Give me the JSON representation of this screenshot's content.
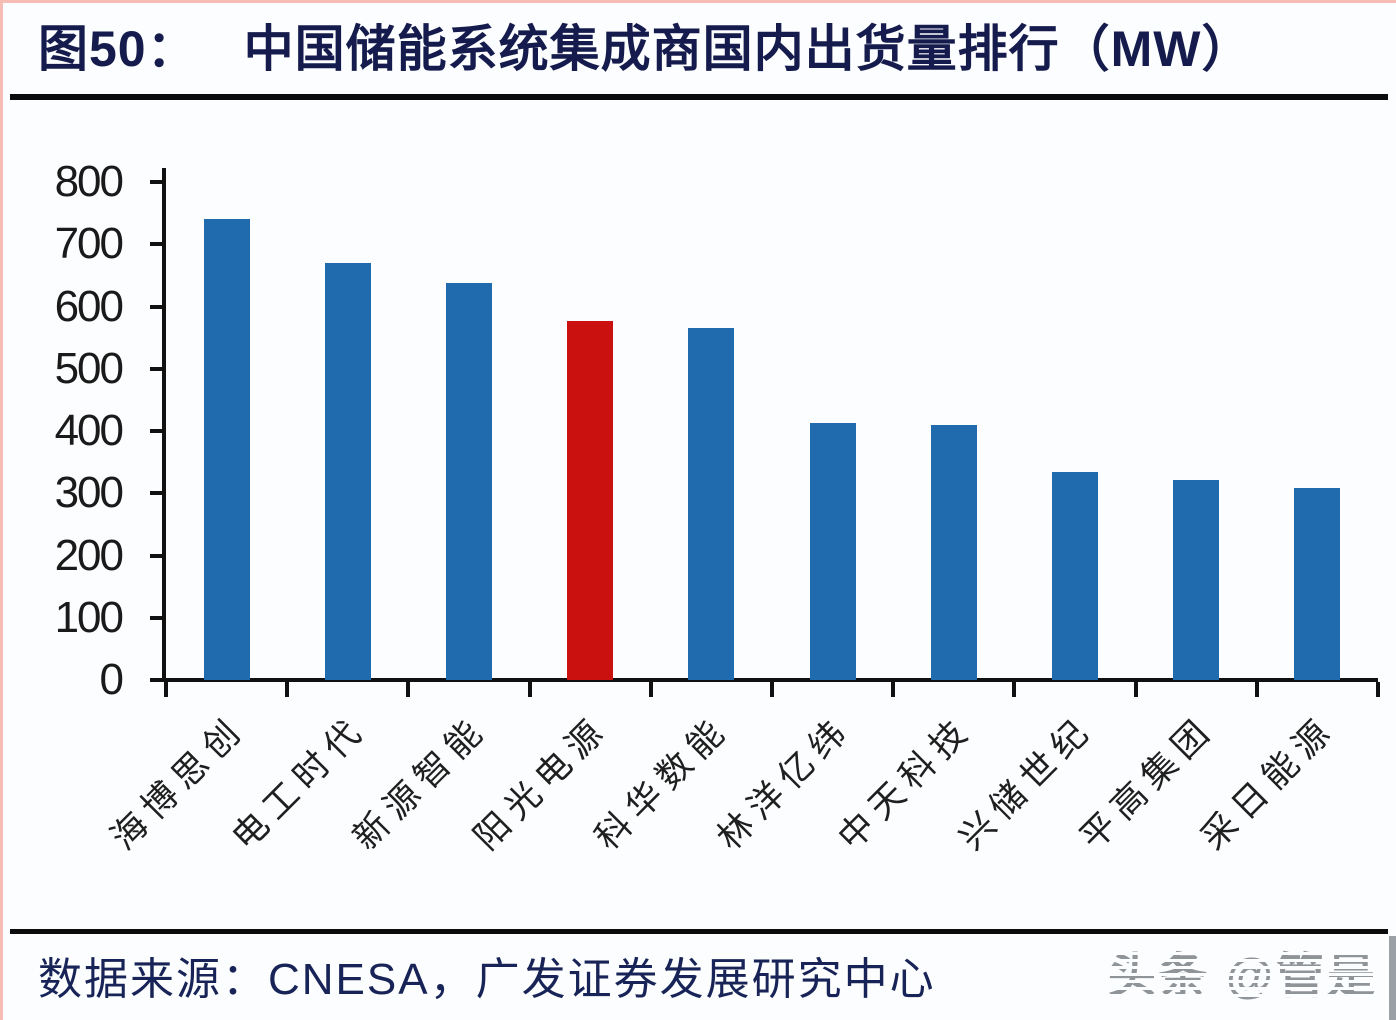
{
  "page": {
    "title_prefix": "图50：",
    "title": "中国储能系统集成商国内出货量排行（MW）",
    "source_label": "数据来源：CNESA，广发证券发展研究中心",
    "watermark": "头条 @管是"
  },
  "colors": {
    "bar_blue": "#1f6bad",
    "bar_highlight_red": "#cb1010",
    "title_navy": "#151c4d",
    "source_navy": "#182457",
    "axis_black": "#111111",
    "watermark_gray": "#8f9499"
  },
  "chart_data": {
    "type": "bar",
    "title": "中国储能系统集成商国内出货量排行（MW）",
    "figure_number": "图50",
    "unit": "MW",
    "categories": [
      "海博思创",
      "电工时代",
      "新源智能",
      "阳光电源",
      "科华数能",
      "林洋亿纬",
      "中天科技",
      "兴储世纪",
      "平高集团",
      "采日能源"
    ],
    "values": [
      740,
      670,
      638,
      577,
      565,
      413,
      409,
      334,
      321,
      308
    ],
    "highlighted_category": "阳光电源",
    "bar_color": "#1f6bad",
    "highlight_color": "#cb1010",
    "xlabel": "",
    "ylabel": "",
    "ylim": [
      0,
      800
    ],
    "yticks": [
      0,
      100,
      200,
      300,
      400,
      500,
      600,
      700,
      800
    ],
    "grid": false,
    "legend": false,
    "xtick_label_rotation_deg": 45
  }
}
